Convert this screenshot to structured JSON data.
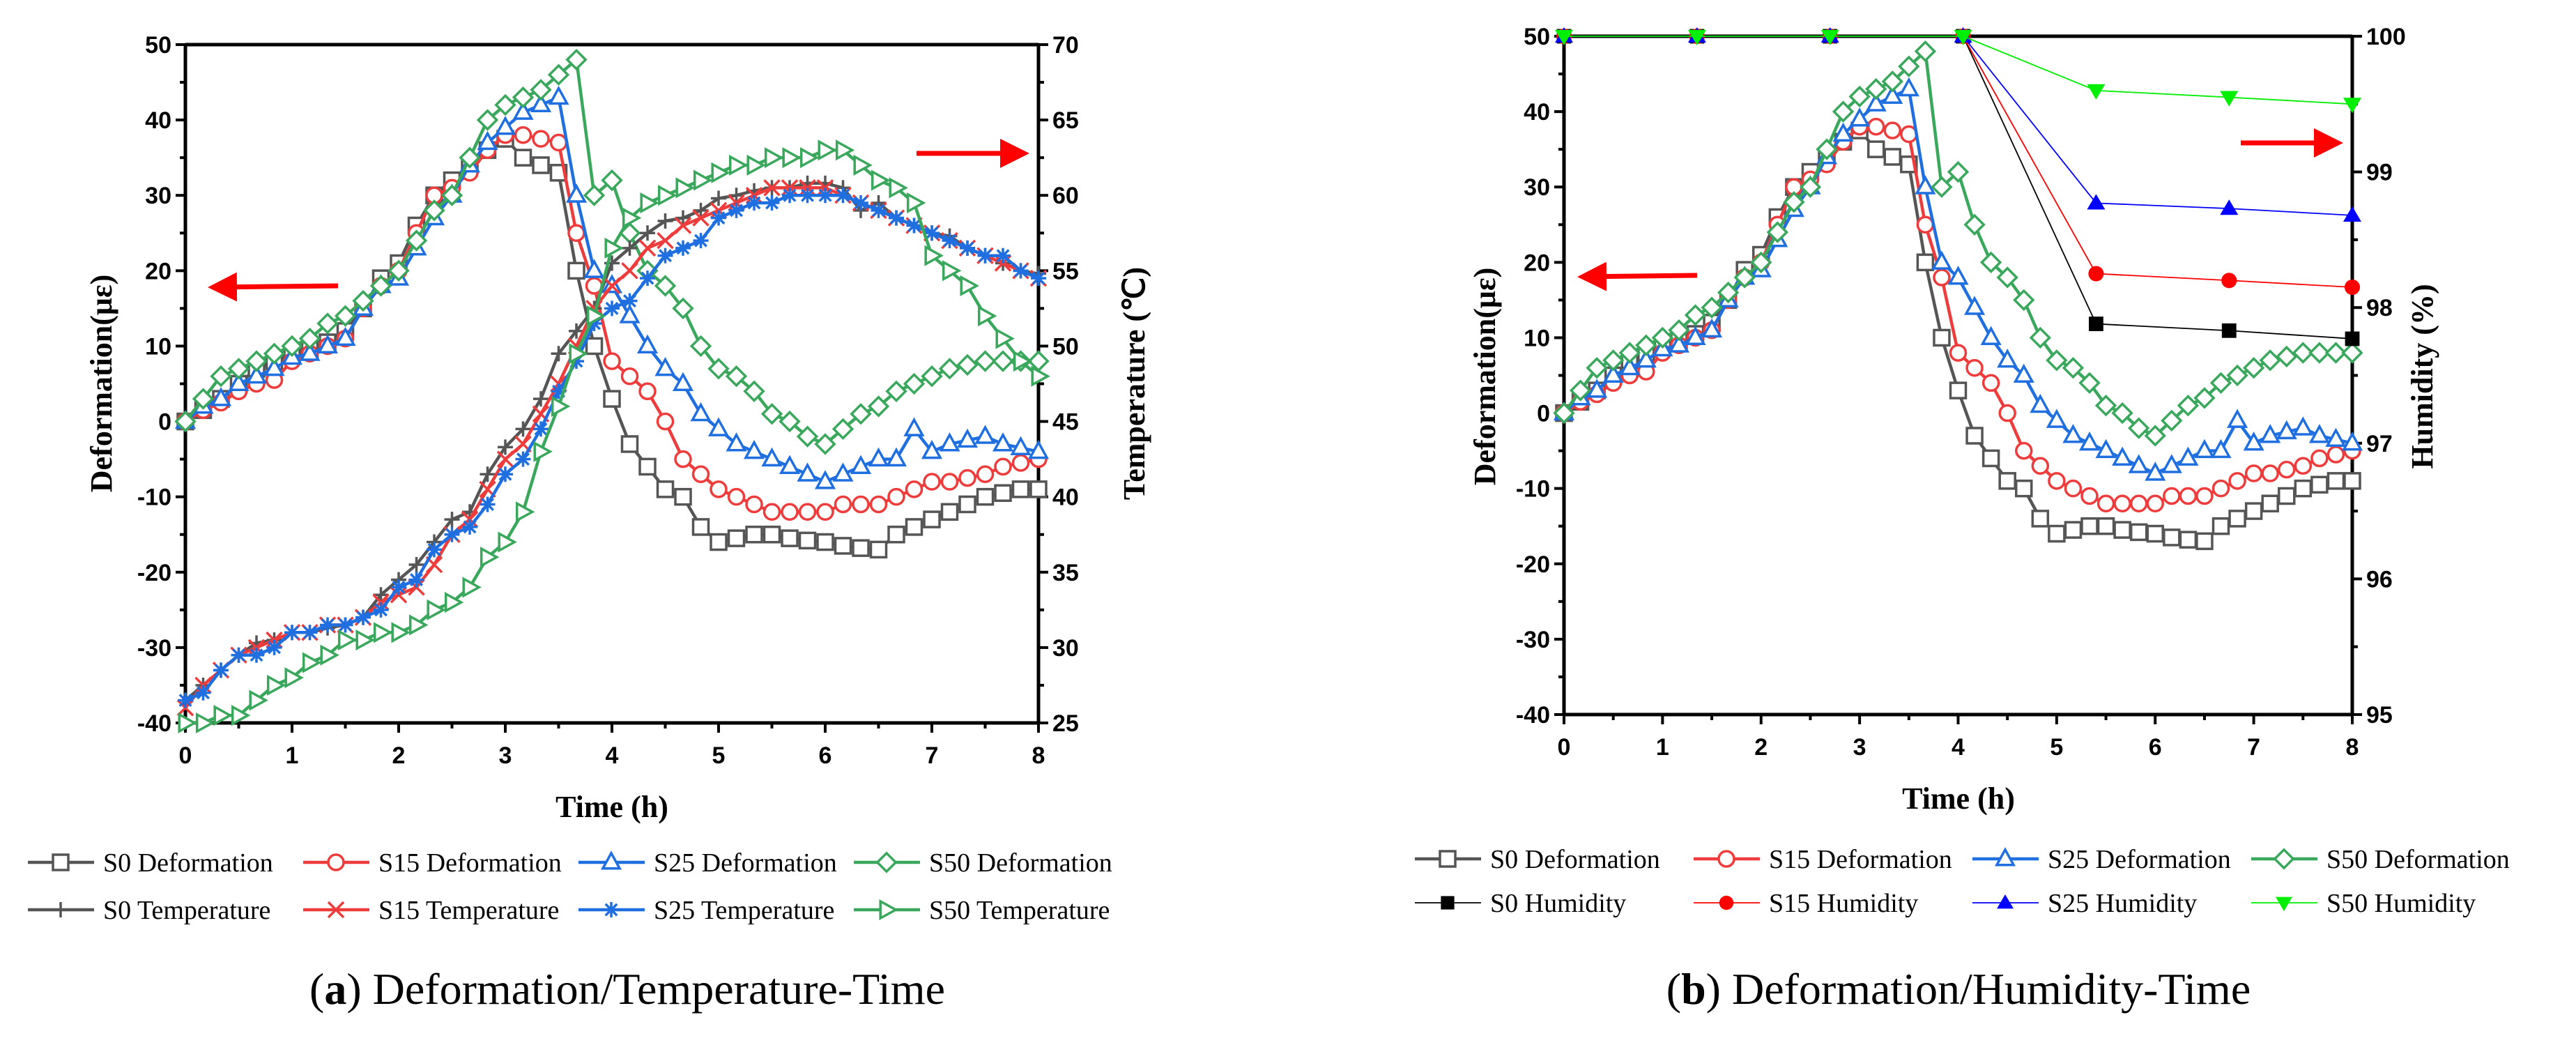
{
  "chart_data": [
    {
      "id": "a",
      "type": "line",
      "caption_letter": "a",
      "caption_text": "Deformation/Temperature-Time",
      "xlabel": "Time (h)",
      "ylabel": "Deformation(με)",
      "y2label": "Temperature (℃)",
      "xlim": [
        0,
        8
      ],
      "xticks": [
        0,
        1,
        2,
        3,
        4,
        5,
        6,
        7,
        8
      ],
      "ylim": [
        -40,
        50
      ],
      "yticks": [
        -40,
        -30,
        -20,
        -10,
        0,
        10,
        20,
        30,
        40,
        50
      ],
      "y2lim": [
        25,
        70
      ],
      "y2ticks": [
        25,
        30,
        35,
        40,
        45,
        50,
        55,
        60,
        65,
        70
      ],
      "x_step": 0.16667,
      "series": [
        {
          "name": "S0 Deformation",
          "axis": "left",
          "color": "#555555",
          "marker": "square",
          "values": [
            0,
            1.5,
            3,
            5,
            7,
            8,
            9,
            9.5,
            10.5,
            12,
            15,
            19,
            21,
            26,
            30,
            32,
            34,
            36,
            37.5,
            35,
            34,
            33,
            20,
            10,
            3,
            -3,
            -6,
            -9,
            -10,
            -14,
            -16,
            -15.5,
            -15,
            -15,
            -15.5,
            -15.8,
            -16,
            -16.5,
            -16.8,
            -17,
            -15,
            -14,
            -13,
            -12,
            -11,
            -10,
            -9.5,
            -9,
            -9
          ]
        },
        {
          "name": "S15 Deformation",
          "axis": "left",
          "color": "#ee3b3b",
          "marker": "circle",
          "values": [
            0,
            1.5,
            2.5,
            4,
            5,
            5.5,
            8,
            9,
            10,
            11,
            15,
            18,
            20,
            25,
            30,
            31,
            33,
            36,
            38,
            38,
            37.5,
            37,
            25,
            18,
            8,
            6,
            4,
            0,
            -5,
            -7,
            -9,
            -10,
            -11,
            -12,
            -12,
            -12,
            -12,
            -11,
            -11,
            -11,
            -10,
            -9,
            -8,
            -8,
            -7.5,
            -7,
            -6,
            -5.5,
            -5
          ]
        },
        {
          "name": "S25 Deformation",
          "axis": "left",
          "color": "#1f6fe0",
          "marker": "triangle",
          "values": [
            0,
            2,
            3,
            5,
            6,
            7,
            8.5,
            9,
            10,
            11,
            15,
            18,
            19,
            23,
            27,
            30,
            34,
            37,
            39,
            41,
            42,
            43,
            30,
            20,
            18,
            14,
            10,
            7,
            5,
            1,
            -1,
            -3,
            -4,
            -5,
            -6,
            -7,
            -8,
            -7,
            -6,
            -5,
            -5,
            -1,
            -4,
            -3,
            -2.5,
            -2,
            -3,
            -3.5,
            -4
          ]
        },
        {
          "name": "S50 Deformation",
          "axis": "left",
          "color": "#3aa85c",
          "marker": "diamond",
          "values": [
            0,
            3,
            6,
            7,
            8,
            9,
            10,
            11,
            13,
            14,
            16,
            18,
            20,
            24,
            28,
            30,
            35,
            40,
            42,
            43,
            44,
            46,
            48,
            30,
            32,
            25,
            20,
            18,
            15,
            10,
            7,
            6,
            4,
            1,
            0,
            -2,
            -3,
            -1,
            1,
            2,
            4,
            5,
            6,
            7,
            7.5,
            8,
            8,
            8,
            8
          ]
        },
        {
          "name": "S0 Temperature",
          "axis": "right",
          "color": "#555555",
          "marker": "plus",
          "values": [
            26.5,
            27.5,
            28.5,
            29.5,
            30.3,
            30.5,
            31,
            31,
            31.3,
            31.5,
            32,
            33.5,
            34.5,
            35.5,
            37,
            38.5,
            39,
            41.5,
            43.3,
            44.5,
            46.5,
            49.5,
            51,
            52.5,
            55.5,
            56.5,
            57.5,
            58.3,
            58.5,
            59,
            59.8,
            60,
            60.3,
            60.5,
            60.5,
            60.8,
            60.8,
            60.5,
            59,
            59.5,
            58.5,
            58,
            57.5,
            57.3,
            56.5,
            56,
            55.5,
            55,
            54.8
          ]
        },
        {
          "name": "S15 Temperature",
          "axis": "right",
          "color": "#ee3b3b",
          "marker": "x",
          "values": [
            26,
            27.5,
            28.5,
            29.5,
            30,
            30.5,
            31,
            31,
            31.5,
            31.5,
            32,
            33,
            33.5,
            34,
            35.5,
            37.5,
            38.5,
            40.5,
            42.5,
            43.5,
            45.5,
            47.5,
            50,
            52.5,
            54,
            55,
            56.5,
            57,
            58,
            58.5,
            59,
            59.5,
            60,
            60.5,
            60.5,
            60.5,
            60.5,
            60,
            59.5,
            59,
            58.5,
            58,
            57.5,
            57,
            56.5,
            56,
            55.5,
            55,
            54.5
          ]
        },
        {
          "name": "S25 Temperature",
          "axis": "right",
          "color": "#1f6fe0",
          "marker": "asterisk",
          "values": [
            26.5,
            27,
            28.5,
            29.5,
            29.5,
            30,
            31,
            31,
            31.5,
            31.5,
            32,
            32.5,
            34,
            34.5,
            36.5,
            37.5,
            38,
            39.5,
            41.5,
            42.5,
            44.5,
            47,
            49,
            51.5,
            52.5,
            53,
            54.5,
            56,
            56.5,
            57,
            58.5,
            59,
            59.5,
            59.5,
            60,
            60,
            60,
            60,
            59.5,
            59,
            58.5,
            58,
            57.5,
            57,
            56.5,
            56,
            56,
            55,
            54.5
          ]
        },
        {
          "name": "S50 Temperature",
          "axis": "right",
          "color": "#3aa85c",
          "marker": "triangle-right",
          "values": [
            25,
            25,
            25.5,
            25.5,
            26.5,
            27.5,
            28,
            29,
            29.5,
            30.5,
            30.5,
            31,
            31,
            31.5,
            32.5,
            33,
            34,
            36,
            37,
            39,
            43,
            46,
            49.5,
            52,
            56.5,
            58.5,
            59.5,
            60,
            60.5,
            61,
            61.5,
            62,
            62,
            62.5,
            62.5,
            62.5,
            63,
            63,
            62,
            61,
            60.5,
            59.5,
            56,
            55,
            54,
            52,
            50.5,
            49,
            48
          ]
        }
      ]
    },
    {
      "id": "b",
      "type": "line",
      "caption_letter": "b",
      "caption_text": "Deformation/Humidity-Time",
      "xlabel": "Time (h)",
      "ylabel": "Deformation(με)",
      "y2label": "Humidity (%)",
      "xlim": [
        0,
        8
      ],
      "xticks": [
        0,
        1,
        2,
        3,
        4,
        5,
        6,
        7,
        8
      ],
      "ylim": [
        -40,
        50
      ],
      "yticks": [
        -40,
        -30,
        -20,
        -10,
        0,
        10,
        20,
        30,
        40,
        50
      ],
      "y2lim": [
        95,
        100
      ],
      "y2ticks": [
        95,
        96,
        97,
        98,
        99,
        100
      ],
      "x_step": 0.16667,
      "series": [
        {
          "name": "S0 Deformation",
          "axis": "left",
          "color": "#555555",
          "marker": "square",
          "values": [
            0,
            1.5,
            3,
            5,
            7,
            8,
            9,
            9.5,
            10.5,
            12,
            15,
            19,
            21,
            26,
            30,
            32,
            34,
            36,
            37.5,
            35,
            34,
            33,
            20,
            10,
            3,
            -3,
            -6,
            -9,
            -10,
            -14,
            -16,
            -15.5,
            -15,
            -15,
            -15.5,
            -15.8,
            -16,
            -16.5,
            -16.8,
            -17,
            -15,
            -14,
            -13,
            -12,
            -11,
            -10,
            -9.5,
            -9,
            -9
          ]
        },
        {
          "name": "S15 Deformation",
          "axis": "left",
          "color": "#ee3b3b",
          "marker": "circle",
          "values": [
            0,
            1.5,
            2.5,
            4,
            5,
            5.5,
            8,
            9,
            10,
            11,
            15,
            18,
            20,
            25,
            30,
            31,
            33,
            36,
            38,
            38,
            37.5,
            37,
            25,
            18,
            8,
            6,
            4,
            0,
            -5,
            -7,
            -9,
            -10,
            -11,
            -12,
            -12,
            -12,
            -12,
            -11,
            -11,
            -11,
            -10,
            -9,
            -8,
            -8,
            -7.5,
            -7,
            -6,
            -5.5,
            -5
          ]
        },
        {
          "name": "S25 Deformation",
          "axis": "left",
          "color": "#1f6fe0",
          "marker": "triangle",
          "values": [
            0,
            2,
            3,
            5,
            6,
            7,
            8.5,
            9,
            10,
            11,
            15,
            18,
            19,
            23,
            27,
            30,
            34,
            37,
            39,
            41,
            42,
            43,
            30,
            20,
            18,
            14,
            10,
            7,
            5,
            1,
            -1,
            -3,
            -4,
            -5,
            -6,
            -7,
            -8,
            -7,
            -6,
            -5,
            -5,
            -1,
            -4,
            -3,
            -2.5,
            -2,
            -3,
            -3.5,
            -4
          ]
        },
        {
          "name": "S50 Deformation",
          "axis": "left",
          "color": "#3aa85c",
          "marker": "diamond",
          "values": [
            0,
            3,
            6,
            7,
            8,
            9,
            10,
            11,
            13,
            14,
            16,
            18,
            20,
            24,
            28,
            30,
            35,
            40,
            42,
            43,
            44,
            46,
            48,
            30,
            32,
            25,
            20,
            18,
            15,
            10,
            7,
            6,
            4,
            1,
            0,
            -2,
            -3,
            -1,
            1,
            2,
            4,
            5,
            6,
            7,
            7.5,
            8,
            8,
            8,
            8
          ]
        },
        {
          "name": "S0 Humidity",
          "axis": "right",
          "color": "#000000",
          "marker": "square-filled",
          "x": [
            0,
            1.35,
            2.7,
            4.05,
            5.4,
            6.75,
            8
          ],
          "values": [
            100,
            100,
            100,
            100,
            97.88,
            97.83,
            97.77
          ]
        },
        {
          "name": "S15 Humidity",
          "axis": "right",
          "color": "#ff0000",
          "marker": "circle-filled",
          "x": [
            0,
            1.35,
            2.7,
            4.05,
            5.4,
            6.75,
            8
          ],
          "values": [
            100,
            100,
            100,
            100,
            98.25,
            98.2,
            98.15
          ]
        },
        {
          "name": "S25 Humidity",
          "axis": "right",
          "color": "#0000ff",
          "marker": "triangle-filled",
          "x": [
            0,
            1.35,
            2.7,
            4.05,
            5.4,
            6.75,
            8
          ],
          "values": [
            100,
            100,
            100,
            100,
            98.77,
            98.73,
            98.68
          ]
        },
        {
          "name": "S50 Humidity",
          "axis": "right",
          "color": "#00ee00",
          "marker": "triangle-down-filled",
          "x": [
            0,
            1.35,
            2.7,
            4.05,
            5.4,
            6.75,
            8
          ],
          "values": [
            100,
            100,
            100,
            100,
            99.6,
            99.55,
            99.5
          ]
        }
      ]
    }
  ]
}
